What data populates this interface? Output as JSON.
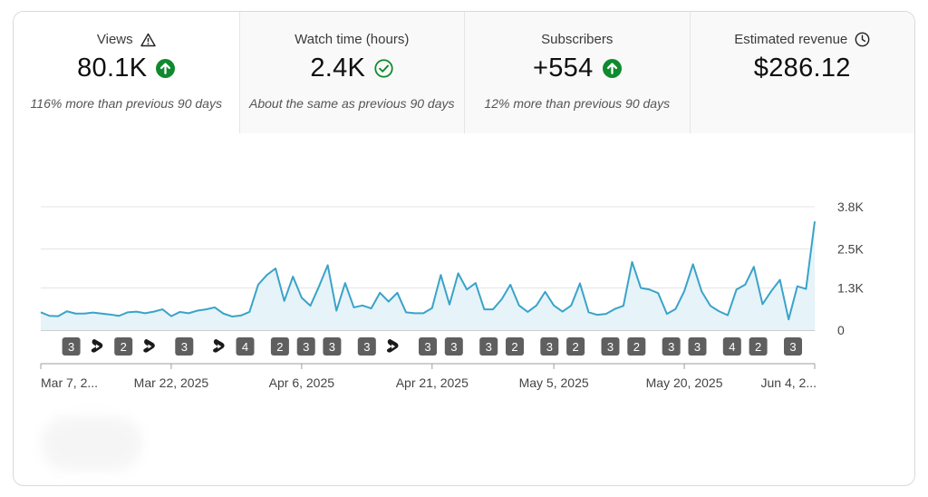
{
  "metrics": [
    {
      "title": "Views",
      "value": "80.1K",
      "sub": "116% more than previous 90 days",
      "title_icon": "warning-icon",
      "trend_icon": "arrow-up-circle-icon"
    },
    {
      "title": "Watch time (hours)",
      "value": "2.4K",
      "sub": "About the same as previous 90 days",
      "trend_icon": "check-circle-icon"
    },
    {
      "title": "Subscribers",
      "value": "+554",
      "sub": "12% more than previous 90 days",
      "trend_icon": "arrow-up-circle-icon"
    },
    {
      "title": "Estimated revenue",
      "value": "$286.12",
      "title_icon": "clock-icon"
    }
  ],
  "colors": {
    "line": "#3aa3c9",
    "fill": "#e6f3f8",
    "up_green": "#0f8a2e",
    "marker_bg": "#5f5f5f"
  },
  "chart_data": {
    "type": "area",
    "title": "Views",
    "xlabel": "",
    "ylabel": "",
    "ylim": [
      0,
      3800
    ],
    "y_ticks": [
      {
        "value": 3800,
        "label": "3.8K"
      },
      {
        "value": 2500,
        "label": "2.5K"
      },
      {
        "value": 1300,
        "label": "1.3K"
      },
      {
        "value": 0,
        "label": "0"
      }
    ],
    "x_ticks": [
      {
        "index": 0,
        "label": "Mar 7, 2..."
      },
      {
        "index": 15,
        "label": "Mar 22, 2025"
      },
      {
        "index": 30,
        "label": "Apr 6, 2025"
      },
      {
        "index": 45,
        "label": "Apr 21, 2025"
      },
      {
        "index": 59,
        "label": "May 5, 2025"
      },
      {
        "index": 74,
        "label": "May 20, 2025"
      },
      {
        "index": 89,
        "label": "Jun 4, 2..."
      }
    ],
    "values": [
      550,
      440,
      430,
      580,
      510,
      510,
      540,
      510,
      480,
      440,
      550,
      570,
      520,
      570,
      640,
      430,
      560,
      520,
      600,
      640,
      700,
      510,
      420,
      450,
      560,
      1400,
      1700,
      1900,
      900,
      1650,
      1000,
      750,
      1350,
      2000,
      600,
      1450,
      700,
      760,
      670,
      1150,
      880,
      1150,
      550,
      520,
      520,
      680,
      1700,
      790,
      1750,
      1250,
      1450,
      640,
      640,
      950,
      1400,
      760,
      560,
      760,
      1180,
      760,
      570,
      760,
      1440,
      550,
      470,
      500,
      650,
      750,
      2100,
      1300,
      1250,
      1140,
      500,
      650,
      1200,
      2030,
      1190,
      750,
      580,
      460,
      1250,
      1400,
      1950,
      800,
      1200,
      1550,
      330,
      1350,
      1270,
      3350
    ],
    "video_markers": [
      {
        "index": 3.5,
        "type": "count",
        "label": "3"
      },
      {
        "index": 6.5,
        "type": "shorts",
        "label": ""
      },
      {
        "index": 9.5,
        "type": "count",
        "label": "2"
      },
      {
        "index": 12.5,
        "type": "shorts",
        "label": ""
      },
      {
        "index": 16.5,
        "type": "count",
        "label": "3"
      },
      {
        "index": 20.5,
        "type": "shorts",
        "label": ""
      },
      {
        "index": 23.5,
        "type": "count",
        "label": "4"
      },
      {
        "index": 27.5,
        "type": "count",
        "label": "2"
      },
      {
        "index": 30.5,
        "type": "count",
        "label": "3"
      },
      {
        "index": 33.5,
        "type": "count",
        "label": "3"
      },
      {
        "index": 37.5,
        "type": "count",
        "label": "3"
      },
      {
        "index": 40.5,
        "type": "shorts",
        "label": ""
      },
      {
        "index": 44.5,
        "type": "count",
        "label": "3"
      },
      {
        "index": 47.5,
        "type": "count",
        "label": "3"
      },
      {
        "index": 51.5,
        "type": "count",
        "label": "3"
      },
      {
        "index": 54.5,
        "type": "count",
        "label": "2"
      },
      {
        "index": 58.5,
        "type": "count",
        "label": "3"
      },
      {
        "index": 61.5,
        "type": "count",
        "label": "2"
      },
      {
        "index": 65.5,
        "type": "count",
        "label": "3"
      },
      {
        "index": 68.5,
        "type": "count",
        "label": "2"
      },
      {
        "index": 72.5,
        "type": "count",
        "label": "3"
      },
      {
        "index": 75.5,
        "type": "count",
        "label": "3"
      },
      {
        "index": 79.5,
        "type": "count",
        "label": "4"
      },
      {
        "index": 82.5,
        "type": "count",
        "label": "2"
      },
      {
        "index": 86.5,
        "type": "count",
        "label": "3"
      }
    ]
  }
}
